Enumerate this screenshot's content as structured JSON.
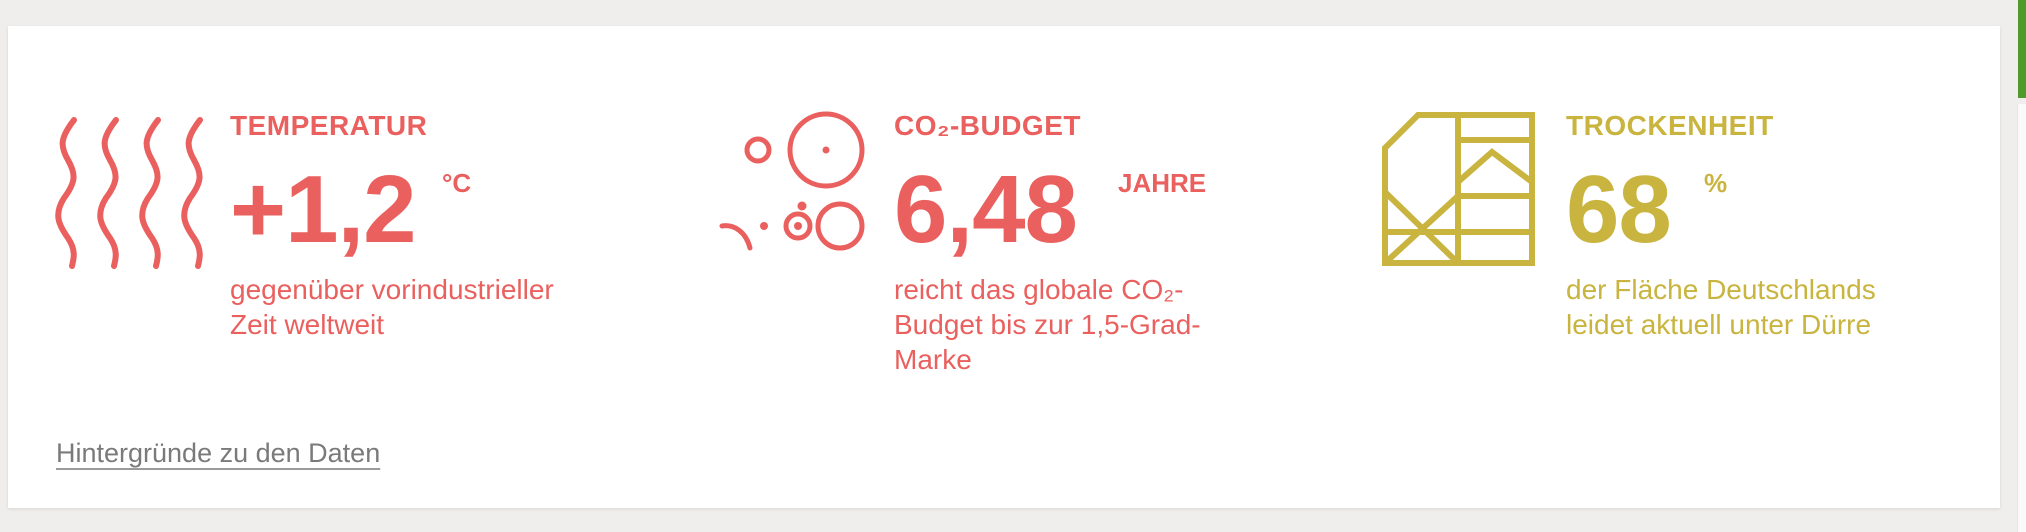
{
  "metrics": [
    {
      "label": "TEMPERATUR",
      "value": "+1,2",
      "unit": "°C",
      "description": "gegenüber vorindustrieller Zeit weltweit",
      "icon": "heat-waves-icon",
      "color": "#e9605e"
    },
    {
      "label": "CO₂-BUDGET",
      "value": "6,48",
      "unit": "JAHRE",
      "description": "reicht das globale CO₂-Budget bis zur 1,5-Grad-Marke",
      "icon": "co2-bubbles-icon",
      "color": "#e9605e"
    },
    {
      "label": "TROCKENHEIT",
      "value": "68",
      "unit": "%",
      "description": "der Fläche Deutschlands leidet aktuell unter Dürre",
      "icon": "dry-land-map-icon",
      "color": "#c8b43e"
    }
  ],
  "footer": {
    "link_label": "Hintergründe zu den Daten"
  },
  "colors": {
    "accent_red": "#e9605e",
    "accent_olive": "#c8b43e",
    "link_gray": "#7a7a7a",
    "page_bg": "#efeeec",
    "card_bg": "#ffffff"
  }
}
